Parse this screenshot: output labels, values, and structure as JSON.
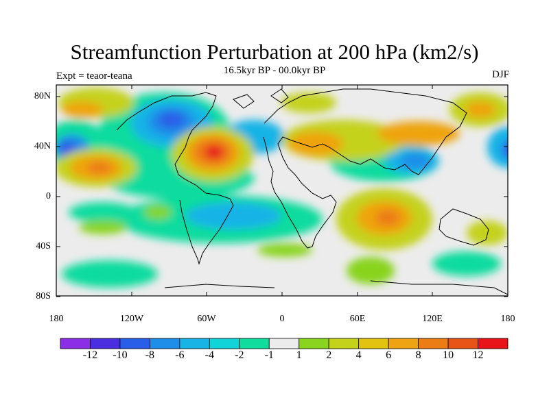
{
  "title": "Streamfunction Perturbation at 200 hPa (km2/s)",
  "subtitle": "16.5kyr BP - 00.0kyr BP",
  "left_string": "Expt = teaor-teana",
  "right_string": "DJF",
  "lat_labels": [
    "80N",
    "40N",
    "0",
    "40S",
    "80S"
  ],
  "lon_labels": [
    "180",
    "120W",
    "60W",
    "0",
    "60E",
    "120E",
    "180"
  ],
  "colorbar": {
    "colors": [
      "#8b2ee6",
      "#4a2ee0",
      "#2a5ee8",
      "#1f8ee8",
      "#18b4e6",
      "#10d4d8",
      "#10dc9e",
      "#ececec",
      "#88d41e",
      "#c4d21a",
      "#e2c410",
      "#eea410",
      "#ec7c14",
      "#e85418",
      "#e8141a"
    ],
    "labels": [
      "-12",
      "-10",
      "-8",
      "-6",
      "-4",
      "-2",
      "-1",
      "1",
      "2",
      "4",
      "6",
      "8",
      "10",
      "12"
    ]
  }
}
